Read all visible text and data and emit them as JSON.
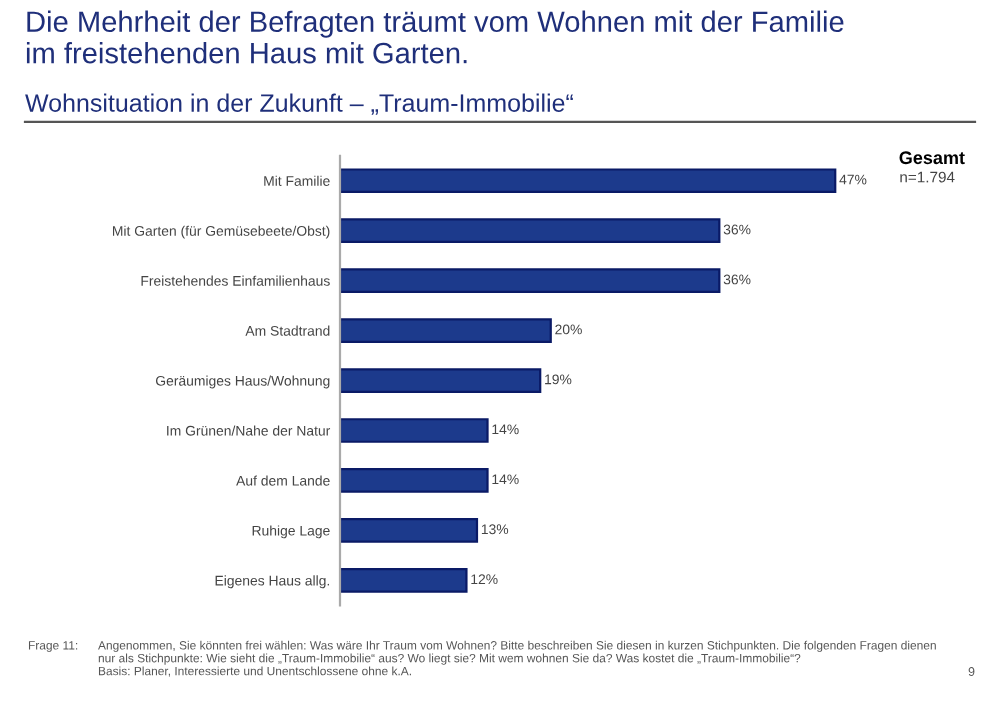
{
  "chart_data": {
    "type": "bar",
    "orientation": "horizontal",
    "title": "Die Mehrheit der Befragten träumt vom Wohnen mit der Familie\nim freistehenden Haus mit Garten.",
    "subtitle": "Wohnsituation in der Zukunft – „Traum-Immobilie“",
    "categories": [
      "Mit Familie",
      "Mit Garten (für Gemüsebeete/Obst)",
      "Freistehendes Einfamilienhaus",
      "Am Stadtrand",
      "Geräumiges Haus/Wohnung",
      "Im Grünen/Nahe der Natur",
      "Auf dem Lande",
      "Ruhige Lage",
      "Eigenes Haus allg."
    ],
    "series": [
      {
        "name": "Gesamt",
        "color": "#1c3a8c",
        "values": [
          47,
          36,
          36,
          20,
          19,
          14,
          14,
          13,
          12
        ],
        "value_labels": [
          "47%",
          "36%",
          "36%",
          "20%",
          "19%",
          "14%",
          "14%",
          "13%",
          "12%"
        ]
      }
    ],
    "annotations": [
      "n=1.794",
      "Frage 11:",
      "Angenommen, Sie könnten frei wählen: Was wäre Ihr Traum vom Wohnen? Bitte beschreiben Sie diesen in kurzen Stichpunkten. Die folgenden Fragen dienen\nnur als Stichpunkte: Wie sieht die „Traum-Immobilie“ aus? Wo liegt sie? Mit wem wohnen Sie da? Was kostet die „Traum-Immobilie“?\nBasis: Planer, Interessierte und Unentschlossene ohne k.A.",
      "9"
    ],
    "tick_labels": "y",
    "grid": false,
    "legend": "top right"
  }
}
